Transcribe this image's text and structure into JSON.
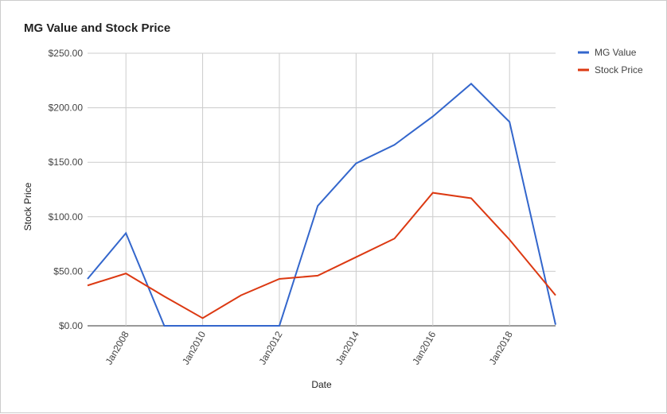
{
  "chart_data": {
    "type": "line",
    "title": "MG Value and Stock Price",
    "x_label": "Date",
    "y_label": "Stock Price",
    "x": [
      2007,
      2008,
      2009,
      2010,
      2011,
      2012,
      2013,
      2014,
      2015,
      2016,
      2017,
      2018,
      2019.2
    ],
    "series": [
      {
        "name": "MG Value",
        "color": "#3366cc",
        "values": [
          43,
          85,
          0,
          0,
          0,
          0,
          110,
          149,
          166,
          192,
          222,
          187,
          1
        ]
      },
      {
        "name": "Stock Price",
        "color": "#dc3912",
        "values": [
          37,
          48,
          27,
          7,
          28,
          43,
          46,
          63,
          80,
          122,
          117,
          79,
          28
        ]
      }
    ],
    "xlim": [
      2007,
      2019.2
    ],
    "xticks": [
      {
        "value": 2008,
        "label": "Jan2008"
      },
      {
        "value": 2010,
        "label": "Jan2010"
      },
      {
        "value": 2012,
        "label": "Jan2012"
      },
      {
        "value": 2014,
        "label": "Jan2014"
      },
      {
        "value": 2016,
        "label": "Jan2016"
      },
      {
        "value": 2018,
        "label": "Jan2018"
      }
    ],
    "ylim": [
      0,
      250
    ],
    "yticks": [
      {
        "value": 0,
        "label": "$0.00"
      },
      {
        "value": 50,
        "label": "$50.00"
      },
      {
        "value": 100,
        "label": "$100.00"
      },
      {
        "value": 150,
        "label": "$150.00"
      },
      {
        "value": 200,
        "label": "$200.00"
      },
      {
        "value": 250,
        "label": "$250.00"
      }
    ],
    "grid": true,
    "legend": "right"
  }
}
